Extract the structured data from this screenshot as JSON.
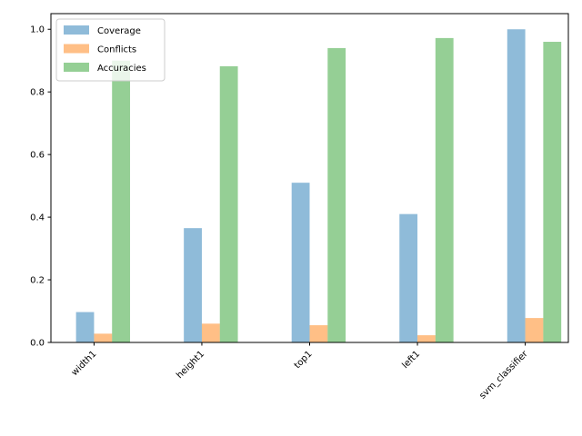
{
  "chart_data": {
    "type": "bar",
    "categories": [
      "width1",
      "height1",
      "top1",
      "left1",
      "svm_classifier"
    ],
    "series": [
      {
        "name": "Coverage",
        "color": "#1f77b4",
        "values": [
          0.097,
          0.365,
          0.51,
          0.41,
          1.0
        ]
      },
      {
        "name": "Conflicts",
        "color": "#ff7f0e",
        "values": [
          0.028,
          0.06,
          0.055,
          0.023,
          0.078
        ]
      },
      {
        "name": "Accuracies",
        "color": "#2ca02c",
        "values": [
          0.9,
          0.882,
          0.94,
          0.972,
          0.96
        ]
      }
    ],
    "bar_alpha": 0.5,
    "ylim": [
      0,
      1.05
    ],
    "yticks": [
      "0.0",
      "0.2",
      "0.4",
      "0.6",
      "0.8",
      "1.0"
    ],
    "title": "",
    "xlabel": "",
    "ylabel": "",
    "legend_position": "top-left",
    "grid": false
  }
}
